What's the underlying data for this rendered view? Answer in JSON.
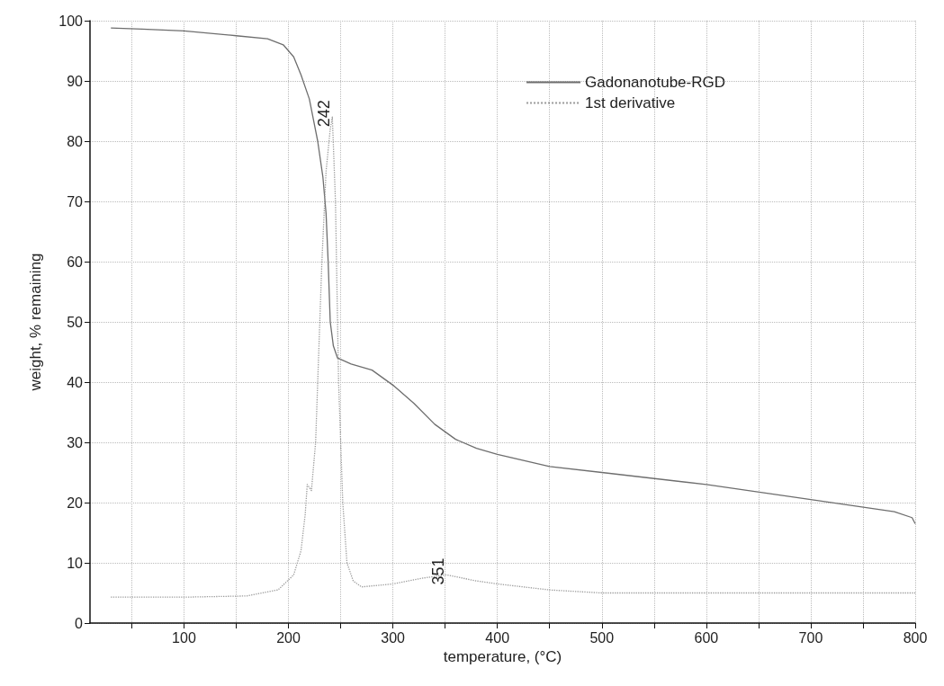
{
  "chart_data": {
    "type": "line",
    "xlabel": "temperature, (°C)",
    "ylabel": "weight, % remaining",
    "xlim": [
      10,
      800
    ],
    "ylim": [
      0,
      100
    ],
    "xticks": [
      {
        "value": 50,
        "label": null
      },
      100,
      {
        "value": 150,
        "label": null
      },
      200,
      {
        "value": 250,
        "label": null
      },
      300,
      {
        "value": 350,
        "label": null
      },
      400,
      {
        "value": 450,
        "label": null
      },
      500,
      {
        "value": 550,
        "label": null
      },
      600,
      {
        "value": 650,
        "label": null
      },
      700,
      {
        "value": 750,
        "label": null
      },
      800
    ],
    "yticks": [
      0,
      10,
      20,
      30,
      40,
      50,
      60,
      70,
      80,
      90,
      100
    ],
    "grid": true,
    "legend": "top right",
    "marker": "none",
    "series": [
      {
        "name": "Gadonanotube-RGD",
        "color": "#6e6e6e",
        "line_style": "solid",
        "x": [
          30,
          60,
          100,
          150,
          180,
          195,
          205,
          212,
          220,
          228,
          233,
          236,
          238,
          240,
          243,
          247,
          260,
          280,
          300,
          320,
          340,
          360,
          380,
          400,
          450,
          500,
          600,
          700,
          780,
          797,
          800
        ],
        "values": [
          98.8,
          98.6,
          98.3,
          97.5,
          97,
          96,
          94,
          91,
          87,
          80,
          74,
          68,
          60,
          50,
          46,
          44,
          43,
          42,
          39.5,
          36.5,
          33,
          30.5,
          29,
          28,
          26,
          25,
          23,
          20.5,
          18.5,
          17.5,
          16.5
        ]
      },
      {
        "name": "1st derivative",
        "color": "#9a9a9a",
        "line_style": "dotted",
        "x": [
          30,
          100,
          160,
          190,
          205,
          212,
          216,
          218,
          222,
          226,
          232,
          236,
          240,
          242,
          245,
          248,
          252,
          256,
          262,
          270,
          300,
          330,
          351,
          380,
          400,
          450,
          500,
          600,
          700,
          800
        ],
        "values": [
          4.3,
          4.3,
          4.5,
          5.5,
          8,
          12,
          18,
          23,
          22,
          30,
          60,
          75,
          82,
          84,
          70,
          40,
          20,
          10,
          7,
          6,
          6.5,
          7.5,
          8,
          7,
          6.5,
          5.5,
          5,
          5,
          5,
          5
        ]
      }
    ],
    "annotations": [
      {
        "text": "242",
        "x": 242,
        "y": 84
      },
      {
        "text": "351",
        "x": 351,
        "y": 8
      }
    ]
  }
}
